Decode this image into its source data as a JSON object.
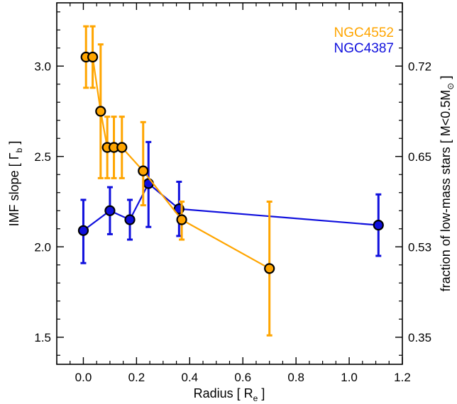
{
  "chart_data": {
    "type": "scatter",
    "xlabel": "Radius [ R",
    "xlabel_sub": "e",
    "xlabel_end": " ]",
    "ylabel": "IMF slope [ Γ",
    "ylabel_sub": "b",
    "ylabel_end": " ]",
    "y2label": "fraction of low-mass stars [ M<0.5M",
    "y2label_sub": "⊙",
    "y2label_end": " ]",
    "xlim": [
      -0.1,
      1.2
    ],
    "ylim": [
      1.35,
      3.35
    ],
    "x_ticks": [
      0.0,
      0.2,
      0.4,
      0.6,
      0.8,
      1.0,
      1.2
    ],
    "x_tick_labels": [
      "0.0",
      "0.2",
      "0.4",
      "0.6",
      "0.8",
      "1.0",
      "1.2"
    ],
    "y_ticks": [
      1.5,
      2.0,
      2.5,
      3.0
    ],
    "y_tick_labels": [
      "1.5",
      "2.0",
      "2.5",
      "3.0"
    ],
    "y2_ticks_at_y": [
      1.5,
      2.0,
      2.5,
      3.0
    ],
    "y2_tick_labels": [
      "0.35",
      "0.53",
      "0.65",
      "0.72"
    ],
    "legend_position": "top-right",
    "series": [
      {
        "name": "NGC4552",
        "color": "#FFA500",
        "x": [
          0.01,
          0.035,
          0.065,
          0.09,
          0.115,
          0.145,
          0.225,
          0.37,
          0.7
        ],
        "y": [
          3.05,
          3.05,
          2.75,
          2.55,
          2.55,
          2.55,
          2.42,
          2.15,
          1.88
        ],
        "yerr_low": [
          2.88,
          2.88,
          2.38,
          2.38,
          2.38,
          2.38,
          2.23,
          2.04,
          1.51
        ],
        "yerr_high": [
          3.22,
          3.22,
          3.12,
          2.72,
          2.72,
          2.72,
          2.69,
          2.25,
          2.25
        ]
      },
      {
        "name": "NGC4387",
        "color": "#1010DD",
        "x": [
          0.0,
          0.1,
          0.175,
          0.245,
          0.36,
          1.11
        ],
        "y": [
          2.09,
          2.2,
          2.15,
          2.35,
          2.21,
          2.12
        ],
        "yerr_low": [
          1.91,
          2.07,
          2.04,
          2.11,
          2.06,
          1.95
        ],
        "yerr_high": [
          2.26,
          2.33,
          2.26,
          2.58,
          2.36,
          2.29
        ]
      }
    ]
  }
}
